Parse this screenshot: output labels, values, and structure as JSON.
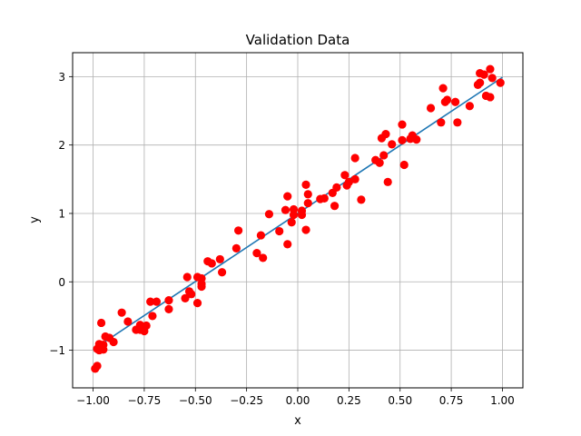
{
  "chart_data": {
    "type": "scatter",
    "title": "Validation Data",
    "xlabel": "x",
    "ylabel": "y",
    "xlim": [
      -1.1,
      1.1
    ],
    "ylim": [
      -1.55,
      3.35
    ],
    "xticks": [
      -1.0,
      -0.75,
      -0.5,
      -0.25,
      0.0,
      0.25,
      0.5,
      0.75,
      1.0
    ],
    "xtick_labels": [
      "−1.00",
      "−0.75",
      "−0.50",
      "−0.25",
      "0.00",
      "0.25",
      "0.50",
      "0.75",
      "1.00"
    ],
    "yticks": [
      -1,
      0,
      1,
      2,
      3
    ],
    "ytick_labels": [
      "−1",
      "0",
      "1",
      "2",
      "3"
    ],
    "grid": true,
    "series": [
      {
        "kind": "scatter",
        "color": "#ff0000",
        "points": [
          [
            -0.99,
            -1.27
          ],
          [
            -0.98,
            -1.23
          ],
          [
            -0.98,
            -0.98
          ],
          [
            -0.97,
            -0.91
          ],
          [
            -0.97,
            -1.0
          ],
          [
            -0.96,
            -0.97
          ],
          [
            -0.96,
            -0.6
          ],
          [
            -0.95,
            -0.92
          ],
          [
            -0.95,
            -0.99
          ],
          [
            -0.94,
            -0.8
          ],
          [
            -0.92,
            -0.82
          ],
          [
            -0.9,
            -0.88
          ],
          [
            -0.86,
            -0.45
          ],
          [
            -0.83,
            -0.58
          ],
          [
            -0.79,
            -0.7
          ],
          [
            -0.77,
            -0.7
          ],
          [
            -0.77,
            -0.63
          ],
          [
            -0.75,
            -0.72
          ],
          [
            -0.74,
            -0.64
          ],
          [
            -0.72,
            -0.29
          ],
          [
            -0.71,
            -0.5
          ],
          [
            -0.69,
            -0.29
          ],
          [
            -0.63,
            -0.27
          ],
          [
            -0.63,
            -0.4
          ],
          [
            -0.55,
            -0.24
          ],
          [
            -0.54,
            0.07
          ],
          [
            -0.53,
            -0.14
          ],
          [
            -0.52,
            -0.18
          ],
          [
            -0.49,
            0.07
          ],
          [
            -0.49,
            -0.31
          ],
          [
            -0.47,
            -0.07
          ],
          [
            -0.47,
            -0.03
          ],
          [
            -0.47,
            0.05
          ],
          [
            -0.44,
            0.3
          ],
          [
            -0.42,
            0.27
          ],
          [
            -0.38,
            0.33
          ],
          [
            -0.37,
            0.14
          ],
          [
            -0.3,
            0.49
          ],
          [
            -0.29,
            0.75
          ],
          [
            -0.2,
            0.42
          ],
          [
            -0.18,
            0.68
          ],
          [
            -0.17,
            0.35
          ],
          [
            -0.14,
            0.99
          ],
          [
            -0.09,
            0.74
          ],
          [
            -0.06,
            1.05
          ],
          [
            -0.05,
            1.25
          ],
          [
            -0.05,
            0.55
          ],
          [
            -0.03,
            0.87
          ],
          [
            -0.02,
            1.06
          ],
          [
            -0.02,
            0.98
          ],
          [
            0.02,
            1.04
          ],
          [
            0.02,
            0.98
          ],
          [
            0.04,
            1.42
          ],
          [
            0.04,
            0.76
          ],
          [
            0.05,
            1.15
          ],
          [
            0.05,
            1.28
          ],
          [
            0.11,
            1.21
          ],
          [
            0.13,
            1.22
          ],
          [
            0.17,
            1.3
          ],
          [
            0.18,
            1.11
          ],
          [
            0.19,
            1.38
          ],
          [
            0.23,
            1.56
          ],
          [
            0.24,
            1.41
          ],
          [
            0.25,
            1.46
          ],
          [
            0.28,
            1.81
          ],
          [
            0.28,
            1.5
          ],
          [
            0.31,
            1.2
          ],
          [
            0.38,
            1.78
          ],
          [
            0.4,
            1.74
          ],
          [
            0.41,
            2.1
          ],
          [
            0.42,
            1.85
          ],
          [
            0.43,
            2.16
          ],
          [
            0.44,
            1.46
          ],
          [
            0.46,
            2.01
          ],
          [
            0.51,
            2.3
          ],
          [
            0.51,
            2.07
          ],
          [
            0.52,
            1.71
          ],
          [
            0.55,
            2.09
          ],
          [
            0.56,
            2.14
          ],
          [
            0.58,
            2.08
          ],
          [
            0.65,
            2.54
          ],
          [
            0.7,
            2.33
          ],
          [
            0.71,
            2.83
          ],
          [
            0.72,
            2.63
          ],
          [
            0.73,
            2.66
          ],
          [
            0.77,
            2.63
          ],
          [
            0.78,
            2.33
          ],
          [
            0.84,
            2.57
          ],
          [
            0.88,
            2.88
          ],
          [
            0.89,
            2.91
          ],
          [
            0.89,
            3.05
          ],
          [
            0.91,
            3.03
          ],
          [
            0.92,
            2.72
          ],
          [
            0.94,
            3.11
          ],
          [
            0.94,
            2.7
          ],
          [
            0.95,
            2.98
          ],
          [
            0.99,
            2.91
          ]
        ]
      },
      {
        "kind": "line",
        "color": "#1f77b4",
        "points": [
          [
            -1.0,
            -0.99
          ],
          [
            1.0,
            2.99
          ]
        ]
      }
    ]
  }
}
